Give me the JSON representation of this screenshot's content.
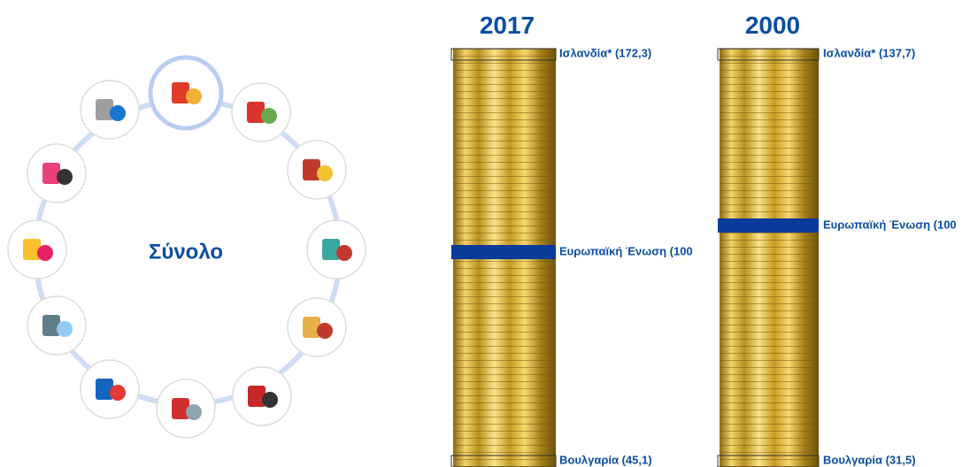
{
  "center_label": "Σύνολο",
  "columns": [
    {
      "year": "2017",
      "top_label": "Ισλανδία* (172,3)",
      "middle_label": "Ευρωπαϊκή Ένωση (100",
      "bottom_label": "Βουλγαρία (45,1)"
    },
    {
      "year": "2000",
      "top_label": "Ισλανδία* (137,7)",
      "middle_label": "Ευρωπαϊκή Ένωση (100",
      "bottom_label": "Βουλγαρία (31,5)"
    }
  ]
}
